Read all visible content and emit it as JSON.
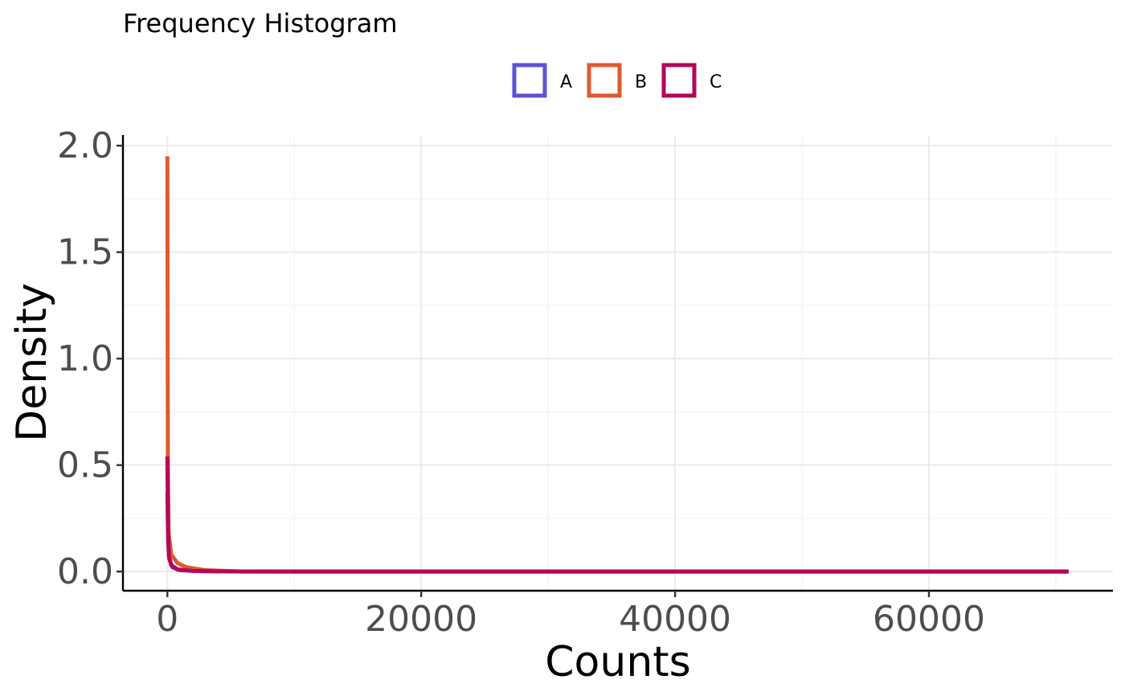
{
  "chart_data": {
    "type": "line",
    "title": "Frequency Histogram",
    "xlabel": "Counts",
    "ylabel": "Density",
    "xlim": [
      -3500,
      74500
    ],
    "ylim": [
      -0.09,
      2.05
    ],
    "x_ticks": [
      0,
      20000,
      40000,
      60000
    ],
    "x_tick_labels": [
      "0",
      "20000",
      "40000",
      "60000"
    ],
    "y_ticks": [
      0.0,
      0.5,
      1.0,
      1.5,
      2.0
    ],
    "y_tick_labels": [
      "0.0",
      "0.5",
      "1.0",
      "1.5",
      "2.0"
    ],
    "grid": true,
    "legend_position": "top",
    "series": [
      {
        "name": "A",
        "color": "#5a52d6",
        "points": [
          [
            0,
            0.37
          ],
          [
            60,
            0.14
          ],
          [
            150,
            0.06
          ],
          [
            400,
            0.02
          ],
          [
            1000,
            0.006
          ],
          [
            3000,
            0.001
          ],
          [
            10000,
            0.0
          ],
          [
            71000,
            0.0
          ]
        ]
      },
      {
        "name": "B",
        "color": "#e05a2e",
        "points": [
          [
            0,
            1.95
          ],
          [
            40,
            0.5
          ],
          [
            100,
            0.18
          ],
          [
            300,
            0.08
          ],
          [
            800,
            0.04
          ],
          [
            1500,
            0.02
          ],
          [
            3000,
            0.006
          ],
          [
            6000,
            0.0
          ],
          [
            71000,
            0.0
          ]
        ]
      },
      {
        "name": "C",
        "color": "#b5075a",
        "points": [
          [
            0,
            0.54
          ],
          [
            50,
            0.2
          ],
          [
            120,
            0.07
          ],
          [
            300,
            0.03
          ],
          [
            800,
            0.01
          ],
          [
            2000,
            0.003
          ],
          [
            6000,
            0.0
          ],
          [
            71000,
            0.0
          ]
        ]
      }
    ]
  }
}
